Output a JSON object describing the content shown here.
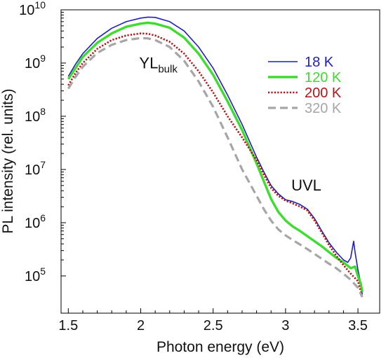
{
  "chart_data": {
    "type": "line",
    "title": "",
    "xlabel": "Photon energy (eV)",
    "ylabel": "PL intensity (rel. units)",
    "xlim": [
      1.45,
      3.65
    ],
    "ylim": [
      20000,
      10000000000
    ],
    "yscale": "log",
    "grid": false,
    "legend_position": "top-right",
    "x_ticks": [
      {
        "value": 1.5,
        "label": "1.5"
      },
      {
        "value": 2,
        "label": "2"
      },
      {
        "value": 2.5,
        "label": "2.5"
      },
      {
        "value": 3,
        "label": "3"
      },
      {
        "value": 3.5,
        "label": "3.5"
      }
    ],
    "y_ticks": [
      {
        "value": 100000,
        "base": "10",
        "exp": "5"
      },
      {
        "value": 1000000,
        "base": "10",
        "exp": "6"
      },
      {
        "value": 10000000,
        "base": "10",
        "exp": "7"
      },
      {
        "value": 100000000,
        "base": "10",
        "exp": "8"
      },
      {
        "value": 1000000000,
        "base": "10",
        "exp": "9"
      },
      {
        "value": 10000000000,
        "base": "10",
        "exp": "10"
      }
    ],
    "annotations": [
      {
        "text": "YL",
        "sub": "bulk",
        "x": 1.99,
        "y": 800000000
      },
      {
        "text": "UVL",
        "x": 3.04,
        "y": 4000000
      }
    ],
    "series": [
      {
        "name": "18 K",
        "color": "#1f1fbf",
        "style": "solid-thin",
        "points": [
          [
            1.5,
            560000000
          ],
          [
            1.55,
            950000000
          ],
          [
            1.6,
            1500000000
          ],
          [
            1.7,
            2900000000
          ],
          [
            1.8,
            4500000000
          ],
          [
            1.9,
            6000000000
          ],
          [
            2.0,
            7000000000
          ],
          [
            2.05,
            7300000000
          ],
          [
            2.1,
            7200000000
          ],
          [
            2.2,
            6000000000
          ],
          [
            2.3,
            4000000000
          ],
          [
            2.4,
            2000000000
          ],
          [
            2.5,
            800000000
          ],
          [
            2.6,
            250000000
          ],
          [
            2.7,
            70000000
          ],
          [
            2.8,
            17000000
          ],
          [
            2.85,
            9000000
          ],
          [
            2.9,
            5000000
          ],
          [
            2.95,
            3500000
          ],
          [
            3.0,
            2700000
          ],
          [
            3.05,
            2500000
          ],
          [
            3.1,
            2200000
          ],
          [
            3.15,
            1800000
          ],
          [
            3.2,
            1200000
          ],
          [
            3.25,
            700000
          ],
          [
            3.3,
            420000
          ],
          [
            3.35,
            280000
          ],
          [
            3.4,
            200000
          ],
          [
            3.43,
            180000
          ],
          [
            3.45,
            220000
          ],
          [
            3.47,
            450000
          ],
          [
            3.48,
            280000
          ],
          [
            3.5,
            130000
          ],
          [
            3.52,
            70000
          ],
          [
            3.53,
            45000
          ]
        ]
      },
      {
        "name": "120 K",
        "color": "#3ddc2f",
        "style": "solid-thick",
        "points": [
          [
            1.5,
            500000000
          ],
          [
            1.55,
            800000000
          ],
          [
            1.6,
            1300000000
          ],
          [
            1.7,
            2400000000
          ],
          [
            1.8,
            3600000000
          ],
          [
            1.9,
            4800000000
          ],
          [
            2.0,
            5500000000
          ],
          [
            2.05,
            5700000000
          ],
          [
            2.1,
            5500000000
          ],
          [
            2.2,
            4600000000
          ],
          [
            2.3,
            3000000000
          ],
          [
            2.4,
            1500000000
          ],
          [
            2.5,
            600000000
          ],
          [
            2.6,
            190000000
          ],
          [
            2.7,
            55000000
          ],
          [
            2.8,
            13000000
          ],
          [
            2.85,
            6000000
          ],
          [
            2.9,
            2800000
          ],
          [
            2.95,
            1600000
          ],
          [
            3.0,
            1100000
          ],
          [
            3.05,
            850000
          ],
          [
            3.1,
            700000
          ],
          [
            3.15,
            560000
          ],
          [
            3.2,
            450000
          ],
          [
            3.25,
            360000
          ],
          [
            3.3,
            280000
          ],
          [
            3.35,
            220000
          ],
          [
            3.4,
            180000
          ],
          [
            3.45,
            140000
          ],
          [
            3.48,
            150000
          ],
          [
            3.5,
            100000
          ],
          [
            3.52,
            70000
          ],
          [
            3.53,
            50000
          ]
        ]
      },
      {
        "name": "200 K",
        "color": "#b11515",
        "style": "dotted",
        "points": [
          [
            1.5,
            380000000
          ],
          [
            1.55,
            650000000
          ],
          [
            1.6,
            1000000000
          ],
          [
            1.7,
            1850000000
          ],
          [
            1.8,
            2700000000
          ],
          [
            1.9,
            3300000000
          ],
          [
            2.0,
            3600000000
          ],
          [
            2.05,
            3550000000
          ],
          [
            2.1,
            3300000000
          ],
          [
            2.2,
            2500000000
          ],
          [
            2.3,
            1500000000
          ],
          [
            2.4,
            700000000
          ],
          [
            2.5,
            280000000
          ],
          [
            2.6,
            100000000
          ],
          [
            2.7,
            40000000
          ],
          [
            2.8,
            15000000
          ],
          [
            2.85,
            8000000
          ],
          [
            2.9,
            4500000
          ],
          [
            2.95,
            3200000
          ],
          [
            3.0,
            2600000
          ],
          [
            3.05,
            2300000
          ],
          [
            3.1,
            2000000
          ],
          [
            3.15,
            1700000
          ],
          [
            3.2,
            1100000
          ],
          [
            3.25,
            650000
          ],
          [
            3.3,
            380000
          ],
          [
            3.35,
            240000
          ],
          [
            3.4,
            160000
          ],
          [
            3.45,
            110000
          ],
          [
            3.5,
            80000
          ],
          [
            3.53,
            40000
          ]
        ]
      },
      {
        "name": "320 K",
        "color": "#a6a6a6",
        "style": "dashed",
        "points": [
          [
            1.5,
            330000000
          ],
          [
            1.55,
            550000000
          ],
          [
            1.6,
            850000000
          ],
          [
            1.7,
            1550000000
          ],
          [
            1.8,
            2200000000
          ],
          [
            1.9,
            2700000000
          ],
          [
            2.0,
            2950000000
          ],
          [
            2.05,
            2900000000
          ],
          [
            2.1,
            2700000000
          ],
          [
            2.2,
            2000000000
          ],
          [
            2.3,
            1100000000
          ],
          [
            2.4,
            450000000
          ],
          [
            2.5,
            150000000
          ],
          [
            2.6,
            40000000
          ],
          [
            2.7,
            10000000
          ],
          [
            2.8,
            3200000
          ],
          [
            2.85,
            1800000
          ],
          [
            2.9,
            1100000
          ],
          [
            2.95,
            750000
          ],
          [
            3.0,
            580000
          ],
          [
            3.05,
            470000
          ],
          [
            3.1,
            390000
          ],
          [
            3.15,
            320000
          ],
          [
            3.2,
            260000
          ],
          [
            3.25,
            210000
          ],
          [
            3.3,
            170000
          ],
          [
            3.35,
            140000
          ],
          [
            3.4,
            110000
          ],
          [
            3.45,
            85000
          ],
          [
            3.5,
            60000
          ],
          [
            3.53,
            40000
          ]
        ]
      }
    ]
  }
}
